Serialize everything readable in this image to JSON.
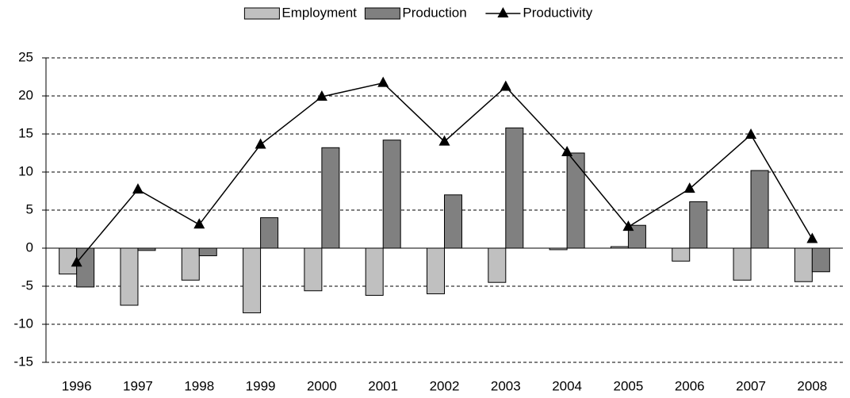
{
  "chart_data": {
    "type": "bar_line",
    "categories": [
      "1996",
      "1997",
      "1998",
      "1999",
      "2000",
      "2001",
      "2002",
      "2003",
      "2004",
      "2005",
      "2006",
      "2007",
      "2008"
    ],
    "series": [
      {
        "name": "Employment",
        "type": "bar",
        "color": "#c0c0c0",
        "values": [
          -3.4,
          -7.5,
          -4.2,
          -8.5,
          -5.6,
          -6.2,
          -6.0,
          -4.5,
          -0.2,
          0.2,
          -1.7,
          -4.2,
          -4.4
        ]
      },
      {
        "name": "Production",
        "type": "bar",
        "color": "#808080",
        "values": [
          -5.1,
          -0.3,
          -1.0,
          4.0,
          13.2,
          14.2,
          7.0,
          15.8,
          12.5,
          3.0,
          6.1,
          10.2,
          -3.1
        ]
      },
      {
        "name": "Productivity",
        "type": "line",
        "color": "#000000",
        "values": [
          -1.9,
          7.7,
          3.1,
          13.6,
          19.9,
          21.7,
          14.0,
          21.2,
          12.6,
          2.8,
          7.8,
          14.9,
          1.2
        ]
      }
    ],
    "ylim": [
      -15,
      25
    ],
    "yticks": [
      -15,
      -10,
      -5,
      0,
      5,
      10,
      15,
      20,
      25
    ],
    "grid": true,
    "legend": "top"
  }
}
